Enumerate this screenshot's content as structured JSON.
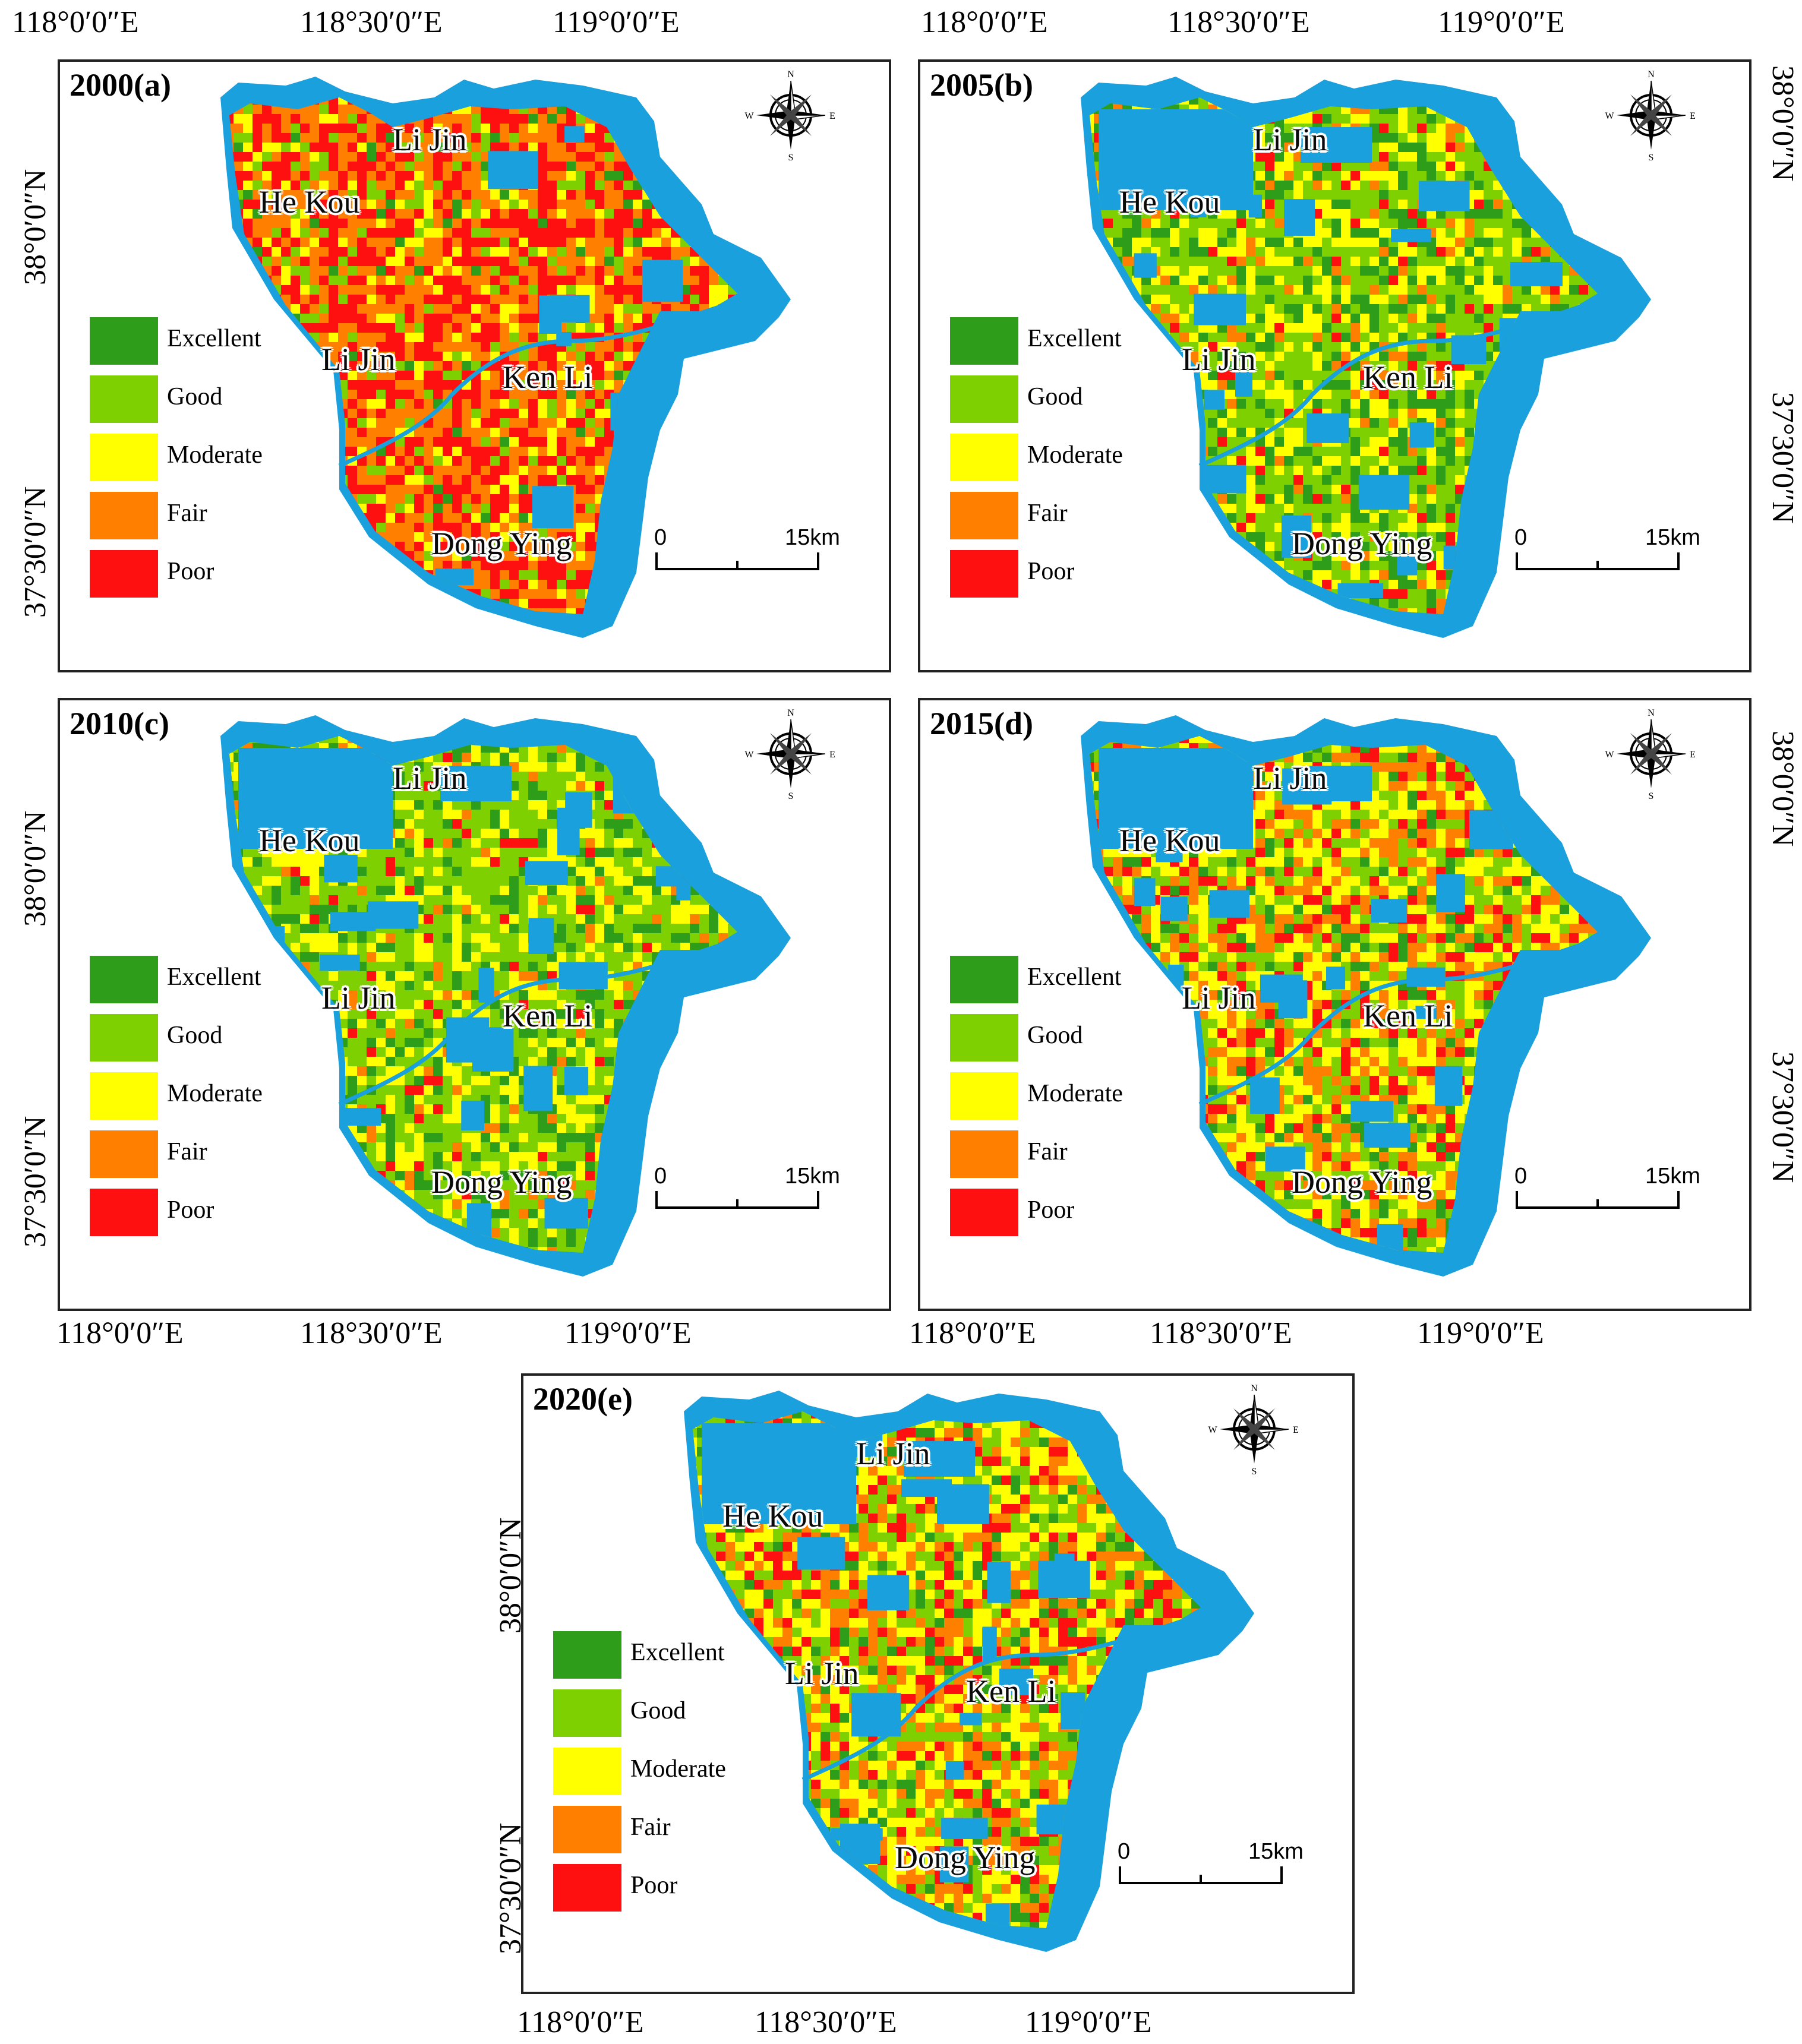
{
  "colors": {
    "water": "#1aa0dc",
    "excellent": "#2e9e1a",
    "good": "#7ed000",
    "moderate": "#ffff00",
    "fair": "#ff7f00",
    "poor": "#ff1010"
  },
  "legend": {
    "items": [
      {
        "label": "Excellent",
        "color": "#2e9e1a"
      },
      {
        "label": "Good",
        "color": "#7ed000"
      },
      {
        "label": "Moderate",
        "color": "#ffff00"
      },
      {
        "label": "Fair",
        "color": "#ff7f00"
      },
      {
        "label": "Poor",
        "color": "#ff1010"
      }
    ]
  },
  "scale_bar": {
    "start": "0",
    "end": "15km"
  },
  "compass": {
    "n": "N",
    "s": "S",
    "e": "E",
    "w": "W"
  },
  "places": {
    "li_jin_north": "Li Jin",
    "he_kou": "He Kou",
    "li_jin": "Li Jin",
    "ken_li": "Ken Li",
    "dong_ying": "Dong Ying"
  },
  "axis_labels": {
    "lon": [
      "118°0′0″E",
      "118°30′0″E",
      "119°0′0″E"
    ],
    "lat": [
      "38°0′0″N",
      "37°30′0″N"
    ]
  },
  "panels": [
    {
      "title": "2000(a)",
      "dominant": "poor-fair"
    },
    {
      "title": "2005(b)",
      "dominant": "good-moderate"
    },
    {
      "title": "2010(c)",
      "dominant": "good"
    },
    {
      "title": "2015(d)",
      "dominant": "moderate-fair"
    },
    {
      "title": "2020(e)",
      "dominant": "moderate-fair"
    }
  ]
}
